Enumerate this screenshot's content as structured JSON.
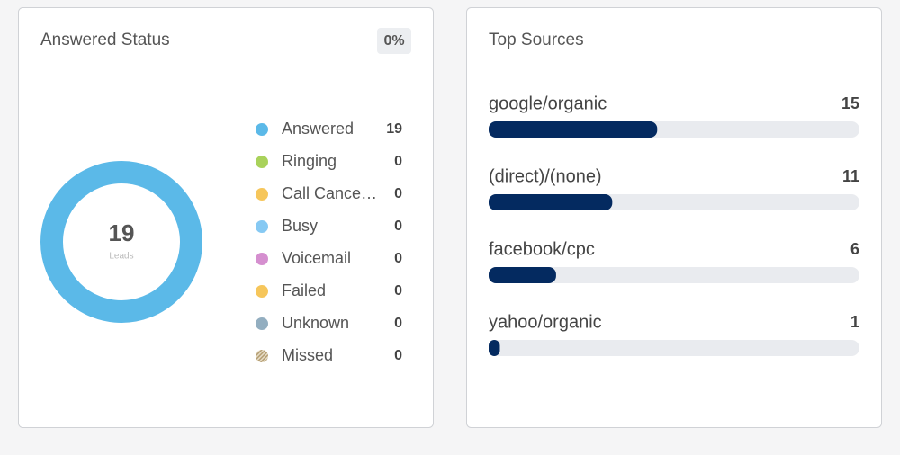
{
  "chart_data": [
    {
      "type": "pie",
      "title": "Answered Status",
      "badge": "0%",
      "total": 19,
      "total_label": "Leads",
      "categories": [
        "Answered",
        "Ringing",
        "Call Cance…",
        "Busy",
        "Voicemail",
        "Failed",
        "Unknown",
        "Missed"
      ],
      "values": [
        19,
        0,
        0,
        0,
        0,
        0,
        0,
        0
      ],
      "colors": [
        "#5bb9e8",
        "#a9d25b",
        "#f6c65b",
        "#86c9f3",
        "#d58fcf",
        "#f6c65b",
        "#93aec0",
        "#c9b48c"
      ]
    },
    {
      "type": "bar",
      "title": "Top Sources",
      "categories": [
        "google/organic",
        "(direct)/(none)",
        "facebook/cpc",
        "yahoo/organic"
      ],
      "values": [
        15,
        11,
        6,
        1
      ],
      "color": "#042a60",
      "xlim": [
        0,
        33
      ]
    }
  ]
}
